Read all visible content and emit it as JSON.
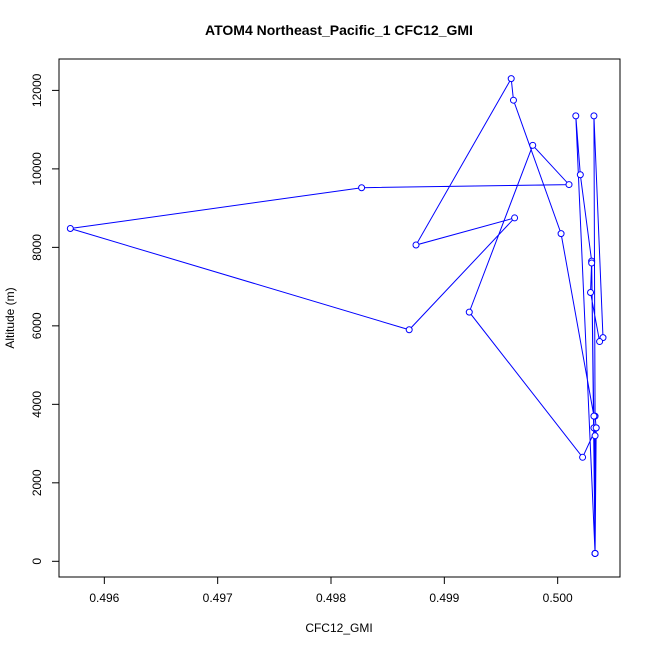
{
  "chart_data": {
    "type": "line",
    "title": "ATOM4 Northeast_Pacific_1 CFC12_GMI",
    "xlabel": "CFC12_GMI",
    "ylabel": "Altitude (m)",
    "xlim": [
      0.4956,
      0.50055
    ],
    "ylim": [
      -400,
      12800
    ],
    "x_ticks": [
      0.496,
      0.497,
      0.498,
      0.499,
      0.5
    ],
    "x_tick_labels": [
      "0.496",
      "0.497",
      "0.498",
      "0.499",
      "0.500"
    ],
    "y_ticks": [
      0,
      2000,
      4000,
      6000,
      8000,
      10000,
      12000
    ],
    "y_tick_labels": [
      "0",
      "2000",
      "4000",
      "6000",
      "8000",
      "10000",
      "12000"
    ],
    "line_color": "#0000ff",
    "marker": "open-circle",
    "grid": false,
    "series": [
      {
        "x": [
          0.50033,
          0.50033,
          0.50033,
          0.50034,
          0.50033,
          0.50032,
          0.5004,
          0.50037,
          0.50029,
          0.5003,
          0.5002,
          0.50016,
          0.50033,
          0.50032,
          0.5003,
          0.50033,
          0.50034,
          0.50022,
          0.49922,
          0.49978,
          0.5001,
          0.49827,
          0.4957,
          0.49869,
          0.49962,
          0.49875,
          0.49959,
          0.49961,
          0.50003,
          0.50032,
          0.50033
        ],
        "y": [
          200,
          200,
          3200,
          3400,
          3700,
          11350,
          5700,
          5600,
          6850,
          7650,
          9850,
          11350,
          200,
          3400,
          7600,
          200,
          3400,
          2650,
          6350,
          10600,
          9600,
          9520,
          8480,
          5900,
          8750,
          8060,
          12300,
          11750,
          8350,
          3700,
          200
        ]
      }
    ]
  }
}
